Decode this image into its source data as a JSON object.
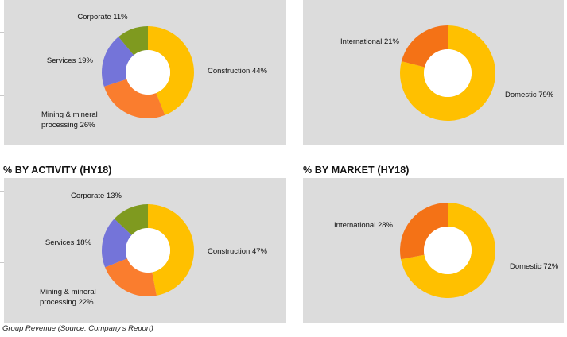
{
  "headings": {
    "activity_hy18": "% BY ACTIVITY (HY18)",
    "market_hy18": "% BY MARKET (HY18)"
  },
  "caption": "Group Revenue (Source: Company's Report)",
  "colors": {
    "panel_bg": "#dcdcdc",
    "construction": "#ffc000",
    "mining": "#fa7d2e",
    "services": "#7474d9",
    "corporate": "#7f9a1f",
    "domestic": "#ffc000",
    "international": "#f47216"
  },
  "chart_data": [
    {
      "type": "pie",
      "donut": true,
      "title": "",
      "slices": [
        {
          "label": "Construction 44%",
          "value": 44
        },
        {
          "label": "Mining & mineral processing 26%",
          "label_lines": [
            "Mining & mineral",
            "processing 26%"
          ],
          "value": 26
        },
        {
          "label": "Services 19%",
          "value": 19
        },
        {
          "label": "Corporate 11%",
          "value": 11
        }
      ]
    },
    {
      "type": "pie",
      "donut": true,
      "title": "",
      "slices": [
        {
          "label": "Domestic 79%",
          "value": 79
        },
        {
          "label": "International 21%",
          "value": 21
        }
      ]
    },
    {
      "type": "pie",
      "donut": true,
      "title": "% BY ACTIVITY (HY18)",
      "slices": [
        {
          "label": "Construction 47%",
          "value": 47
        },
        {
          "label": "Mining & mineral processing 22%",
          "label_lines": [
            "Mining & mineral",
            "processing 22%"
          ],
          "value": 22
        },
        {
          "label": "Services 18%",
          "value": 18
        },
        {
          "label": "Corporate 13%",
          "value": 13
        }
      ]
    },
    {
      "type": "pie",
      "donut": true,
      "title": "% BY MARKET (HY18)",
      "slices": [
        {
          "label": "Domestic 72%",
          "value": 72
        },
        {
          "label": "International 28%",
          "value": 28
        }
      ]
    }
  ]
}
